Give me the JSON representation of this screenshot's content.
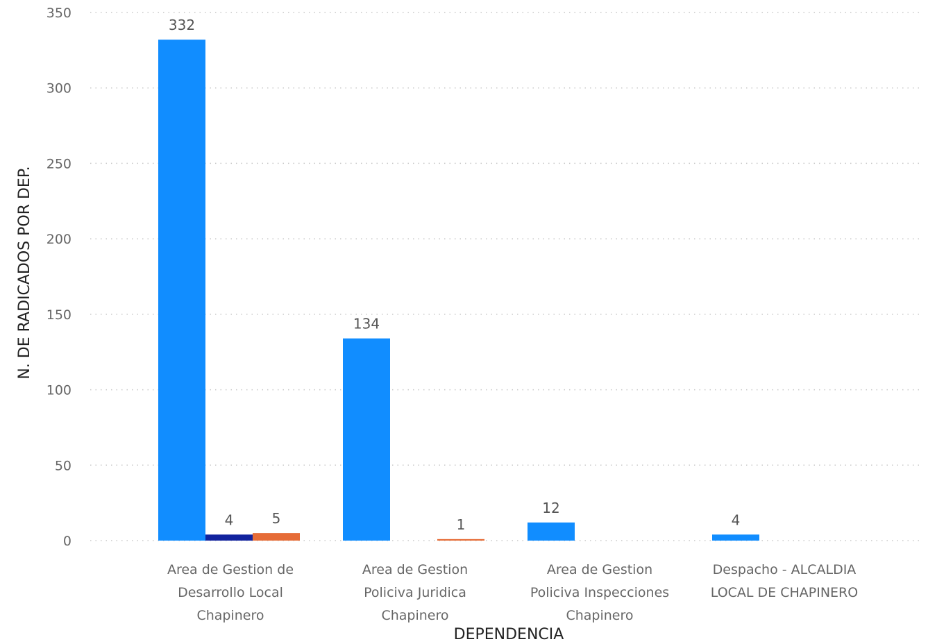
{
  "chart_data": {
    "type": "bar",
    "title": "",
    "xlabel": "DEPENDENCIA",
    "ylabel": "N. DE RADICADOS POR DEP.",
    "ylim": [
      0,
      350
    ],
    "yticks": [
      "0",
      "50",
      "100",
      "150",
      "200",
      "250",
      "300",
      "350"
    ],
    "grid": true,
    "categories": [
      [
        "Area de Gestion de",
        "Desarrollo Local",
        "Chapinero"
      ],
      [
        "Area de Gestion",
        "Policiva Juridica",
        "Chapinero"
      ],
      [
        "Area de Gestion",
        "Policiva Inspecciones",
        "Chapinero"
      ],
      [
        "Despacho - ALCALDIA",
        "LOCAL DE CHAPINERO"
      ]
    ],
    "series": [
      {
        "color": "#118DFF",
        "values": [
          332,
          134,
          12,
          4
        ]
      },
      {
        "color": "#12239E",
        "values": [
          4,
          null,
          null,
          null
        ]
      },
      {
        "color": "#E66C37",
        "values": [
          5,
          1,
          null,
          null
        ]
      }
    ]
  }
}
